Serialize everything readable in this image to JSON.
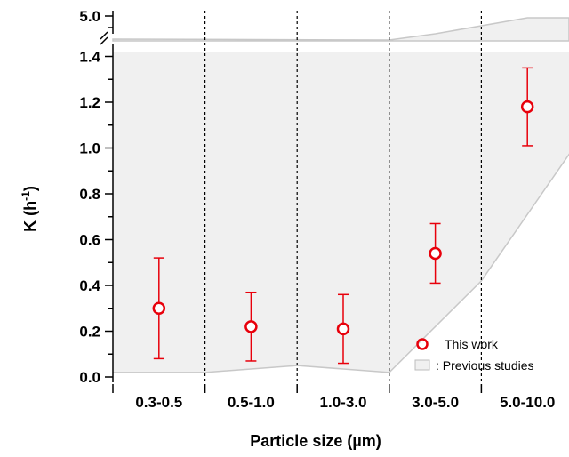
{
  "chart_data": {
    "type": "scatter",
    "categories": [
      "0.3-0.5",
      "0.5-1.0",
      "1.0-3.0",
      "3.0-5.0",
      "5.0-10.0"
    ],
    "xlabel": "Particle size (µm)",
    "ylabel_main": "K (h",
    "ylabel_sup": "-1",
    "ylabel_close": ")",
    "y_ticks_lower": [
      "0.0",
      "0.2",
      "0.4",
      "0.6",
      "0.8",
      "1.0",
      "1.2",
      "1.4"
    ],
    "y_tick_upper": "5.0",
    "ylim_lower": [
      -0.02,
      1.4
    ],
    "axis_break": true,
    "grid": false,
    "series": [
      {
        "name": "This work",
        "color": "#e8000b",
        "marker": "open-circle",
        "values": [
          0.3,
          0.22,
          0.21,
          0.54,
          1.18
        ],
        "err_low": [
          0.08,
          0.07,
          0.06,
          0.41,
          1.01
        ],
        "err_high": [
          0.52,
          0.37,
          0.36,
          0.67,
          1.35
        ]
      }
    ],
    "shaded_region": {
      "name": ": Previous studies",
      "color": "#f0f0f0",
      "boundary_color": "#c8c8c8",
      "lower_boundary": {
        "x": [
          0,
          1,
          2,
          3,
          4,
          5
        ],
        "y": [
          0.02,
          0.02,
          0.05,
          0.02,
          0.42,
          1.0
        ]
      }
    },
    "legend_position": "bottom-right"
  }
}
